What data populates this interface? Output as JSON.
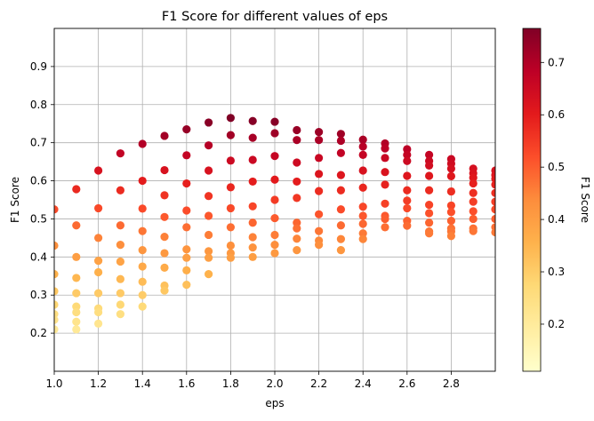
{
  "chart_data": {
    "type": "scatter",
    "title": "F1 Score for different values of eps",
    "xlabel": "eps",
    "ylabel": "F1 Score",
    "xlim": [
      1.0,
      3.0
    ],
    "ylim": [
      0.1,
      1.0
    ],
    "xticks": [
      "1.0",
      "1.2",
      "1.4",
      "1.6",
      "1.8",
      "2.0",
      "2.2",
      "2.4",
      "2.6",
      "2.8"
    ],
    "yticks": [
      "0.2",
      "0.3",
      "0.4",
      "0.5",
      "0.6",
      "0.7",
      "0.8",
      "0.9"
    ],
    "grid": true,
    "colormap": "YlOrRd",
    "colormap_stops": [
      "#ffffcc",
      "#ffeda0",
      "#fed976",
      "#feb24c",
      "#fd8d3c",
      "#fc4e2a",
      "#e31a1c",
      "#bd0026",
      "#800026"
    ],
    "colorbar": {
      "label": "F1 Score",
      "range": [
        0.11,
        0.765
      ],
      "ticks": [
        "0.2",
        "0.3",
        "0.4",
        "0.5",
        "0.6",
        "0.7"
      ]
    },
    "series": [
      {
        "x": 1.0,
        "y": [
          0.525,
          0.43,
          0.355,
          0.31,
          0.275,
          0.25,
          0.235,
          0.21
        ]
      },
      {
        "x": 1.1,
        "y": [
          0.578,
          0.483,
          0.4,
          0.345,
          0.305,
          0.27,
          0.255,
          0.23,
          0.21
        ]
      },
      {
        "x": 1.2,
        "y": [
          0.627,
          0.528,
          0.45,
          0.39,
          0.36,
          0.305,
          0.265,
          0.255,
          0.225
        ]
      },
      {
        "x": 1.3,
        "y": [
          0.672,
          0.575,
          0.483,
          0.432,
          0.388,
          0.342,
          0.305,
          0.275,
          0.25
        ]
      },
      {
        "x": 1.4,
        "y": [
          0.697,
          0.6,
          0.527,
          0.468,
          0.418,
          0.375,
          0.335,
          0.3,
          0.27
        ]
      },
      {
        "x": 1.5,
        "y": [
          0.718,
          0.628,
          0.562,
          0.505,
          0.453,
          0.41,
          0.372,
          0.325,
          0.312
        ]
      },
      {
        "x": 1.6,
        "y": [
          0.735,
          0.667,
          0.593,
          0.522,
          0.478,
          0.42,
          0.398,
          0.365,
          0.327
        ]
      },
      {
        "x": 1.7,
        "y": [
          0.753,
          0.693,
          0.627,
          0.56,
          0.508,
          0.458,
          0.415,
          0.398,
          0.355
        ]
      },
      {
        "x": 1.8,
        "y": [
          0.765,
          0.72,
          0.653,
          0.583,
          0.528,
          0.478,
          0.43,
          0.41,
          0.398
        ]
      },
      {
        "x": 1.9,
        "y": [
          0.757,
          0.713,
          0.655,
          0.598,
          0.533,
          0.49,
          0.452,
          0.425,
          0.4
        ]
      },
      {
        "x": 2.0,
        "y": [
          0.755,
          0.725,
          0.665,
          0.603,
          0.55,
          0.502,
          0.458,
          0.432,
          0.41
        ]
      },
      {
        "x": 2.1,
        "y": [
          0.733,
          0.707,
          0.648,
          0.598,
          0.555,
          0.49,
          0.475,
          0.448,
          0.418
        ]
      },
      {
        "x": 2.2,
        "y": [
          0.728,
          0.707,
          0.66,
          0.618,
          0.573,
          0.512,
          0.468,
          0.443,
          0.432
        ]
      },
      {
        "x": 2.3,
        "y": [
          0.723,
          0.705,
          0.673,
          0.615,
          0.575,
          0.525,
          0.483,
          0.447,
          0.418
        ]
      },
      {
        "x": 2.4,
        "y": [
          0.708,
          0.69,
          0.668,
          0.627,
          0.582,
          0.532,
          0.508,
          0.487,
          0.462,
          0.447
        ]
      },
      {
        "x": 2.5,
        "y": [
          0.698,
          0.685,
          0.66,
          0.623,
          0.59,
          0.54,
          0.508,
          0.5,
          0.478
        ]
      },
      {
        "x": 2.6,
        "y": [
          0.683,
          0.668,
          0.652,
          0.613,
          0.575,
          0.548,
          0.528,
          0.495,
          0.482
        ]
      },
      {
        "x": 2.7,
        "y": [
          0.668,
          0.652,
          0.64,
          0.613,
          0.575,
          0.537,
          0.515,
          0.49,
          0.467,
          0.462
        ]
      },
      {
        "x": 2.8,
        "y": [
          0.657,
          0.645,
          0.632,
          0.612,
          0.572,
          0.535,
          0.518,
          0.495,
          0.475,
          0.467,
          0.455
        ]
      },
      {
        "x": 2.9,
        "y": [
          0.632,
          0.62,
          0.608,
          0.593,
          0.568,
          0.545,
          0.52,
          0.5,
          0.475,
          0.468
        ]
      },
      {
        "x": 3.0,
        "y": [
          0.627,
          0.615,
          0.605,
          0.59,
          0.568,
          0.545,
          0.525,
          0.5,
          0.478,
          0.465
        ]
      }
    ]
  }
}
